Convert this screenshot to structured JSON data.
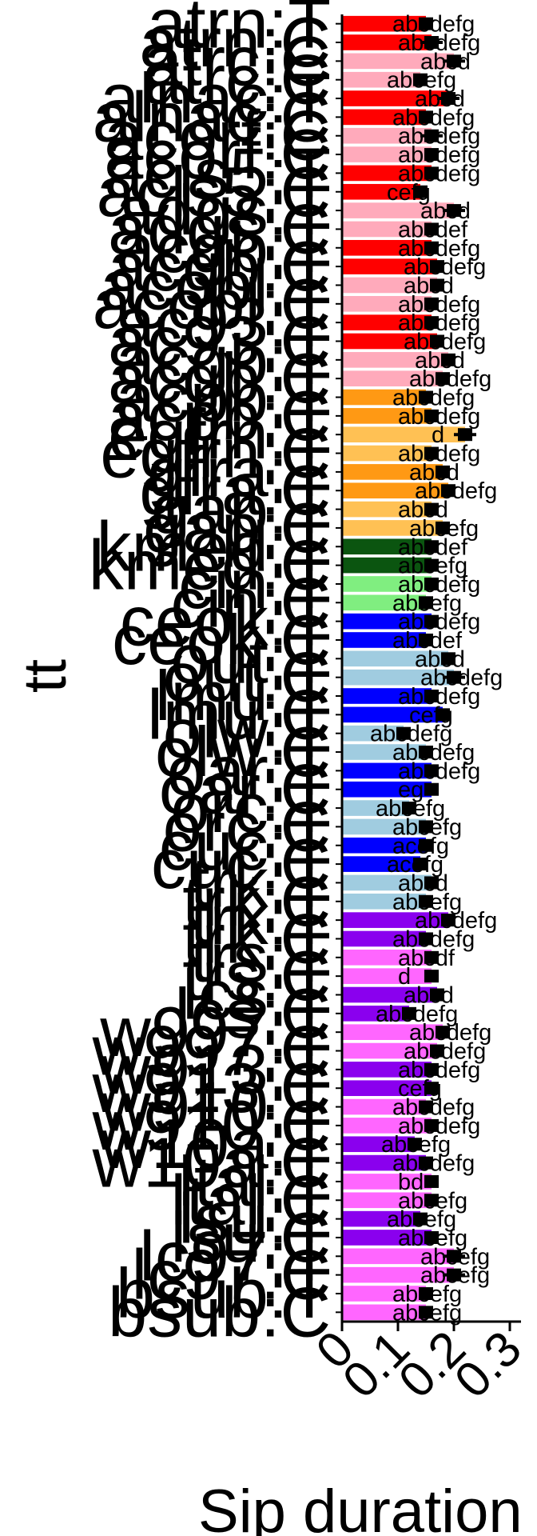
{
  "chart_data": {
    "type": "bar",
    "orientation": "horizontal",
    "title": "",
    "xlabel": "Sip duration",
    "ylabel": "tt",
    "xlim": [
      0,
      0.32
    ],
    "x_ticks": [
      0,
      0.1,
      0.2,
      0.3
    ],
    "x_tick_labels": [
      "0",
      "0.1",
      "0.2",
      "0.3"
    ],
    "grid": false,
    "legend": "none",
    "categories": [
      "atrn:T",
      "atrn:C",
      "atrc:C",
      "atrc:C",
      "alnac:T",
      "alnac:C",
      "acorf:C",
      "acorf:C",
      "acls5:T",
      "acls5:C",
      "adgs:T",
      "adgs:C",
      "acgb:T",
      "acgb:C",
      "acobl:T",
      "acobl:C",
      "ac93:T",
      "ac93:C",
      "acgb:T",
      "acgb:C",
      "acpb:T",
      "acpb:C",
      "egfrn:T",
      "egfrn:C",
      "gfra:T",
      "gfra:C",
      "gap:T",
      "gap:C",
      "kmed:T",
      "kmed:C",
      "cin:T",
      "cin:C",
      "ceok:T",
      "ceok:C",
      "out:T",
      "out:C",
      "lmu:T",
      "lmu:C",
      "olw:T",
      "olw:C",
      "oar:T",
      "oar:C",
      "orc:T",
      "orc:C",
      "cuc:T",
      "cuc:C",
      "trk:T",
      "trk:C",
      "trk:T",
      "trk:C",
      "trs:T",
      "trs:C",
      "lcs:T",
      "lcs:C",
      "w997:T",
      "w997:C",
      "w913:T",
      "w913:C",
      "w910:T",
      "w910:C",
      "w10a:T",
      "w10a:C",
      "ltal:T",
      "ltal:C",
      "lsu:T",
      "lsu:C",
      "lc97:T",
      "lc97:C",
      "bsub:T",
      "bsub:C"
    ],
    "values": [
      0.15,
      0.16,
      0.2,
      0.14,
      0.19,
      0.15,
      0.16,
      0.16,
      0.16,
      0.14,
      0.2,
      0.16,
      0.16,
      0.17,
      0.17,
      0.16,
      0.16,
      0.17,
      0.19,
      0.18,
      0.15,
      0.16,
      0.22,
      0.16,
      0.18,
      0.19,
      0.16,
      0.18,
      0.16,
      0.16,
      0.16,
      0.15,
      0.16,
      0.15,
      0.19,
      0.2,
      0.16,
      0.18,
      0.11,
      0.15,
      0.16,
      0.16,
      0.12,
      0.15,
      0.15,
      0.14,
      0.16,
      0.15,
      0.19,
      0.15,
      0.16,
      0.16,
      0.17,
      0.12,
      0.18,
      0.17,
      0.16,
      0.16,
      0.15,
      0.16,
      0.13,
      0.15,
      0.16,
      0.16,
      0.14,
      0.16,
      0.2,
      0.2,
      0.15,
      0.15
    ],
    "errors": [
      0.01,
      0.02,
      0.02,
      0.01,
      0.02,
      0.01,
      0.02,
      0.01,
      0.01,
      0.01,
      0.02,
      0.01,
      0.01,
      0.01,
      0.01,
      0.01,
      0.01,
      0.01,
      0.01,
      0.01,
      0.01,
      0.01,
      0.02,
      0.01,
      0.01,
      0.01,
      0.01,
      0.01,
      0.01,
      0.01,
      0.01,
      0.01,
      0.01,
      0.01,
      0.01,
      0.02,
      0.01,
      0.01,
      0.01,
      0.01,
      0.01,
      0.01,
      0.01,
      0.01,
      0.01,
      0.01,
      0.01,
      0.01,
      0.01,
      0.01,
      0.01,
      0.01,
      0.01,
      0.01,
      0.01,
      0.01,
      0.01,
      0.01,
      0.01,
      0.01,
      0.01,
      0.01,
      0.01,
      0.01,
      0.01,
      0.01,
      0.02,
      0.02,
      0.01,
      0.01
    ],
    "bar_labels": [
      "abcdefg",
      "abcdefg",
      "abcd",
      "abcefg",
      "abcd",
      "abcdefg",
      "abcdefg",
      "abcdefg",
      "abcdefg",
      "cefg",
      "abcd",
      "abcdef",
      "abcdefg",
      "abcdefg",
      "abcd",
      "abcdefg",
      "abcdefg",
      "abcdefg",
      "abcd",
      "abcdefg",
      "abcdefg",
      "abcdefg",
      "d",
      "abcdefg",
      "abcd",
      "abcdefg",
      "abcd",
      "abcefg",
      "abcdef",
      "abcefg",
      "abcdefg",
      "abcefg",
      "abcdefg",
      "abcdef",
      "abcd",
      "abcdefg",
      "abcdefg",
      "cefg",
      "abcdefg",
      "abcdefg",
      "abcdefg",
      "eg",
      "abcefg",
      "abcefg",
      "acefg",
      "acefg",
      "abcd",
      "abcefg",
      "abcdefg",
      "abcdefg",
      "abcdf",
      "d",
      "abcd",
      "abcdefg",
      "abcdefg",
      "abcdefg",
      "abcdefg",
      "cefg",
      "abcdefg",
      "abcdefg",
      "abcefg",
      "abcdefg",
      "bd",
      "abcefg",
      "abcefg",
      "abcefg",
      "abcefg",
      "abcefg",
      "abcefg",
      "abcefg"
    ],
    "colors": [
      "#ff0000",
      "#ff0000",
      "#ffaabb",
      "#ffaabb",
      "#ff0000",
      "#ff0000",
      "#ffaabb",
      "#ffaabb",
      "#ff0000",
      "#ff0000",
      "#ffaabb",
      "#ffaabb",
      "#ff0000",
      "#ff0000",
      "#ffaabb",
      "#ffaabb",
      "#ff0000",
      "#ff0000",
      "#ffaabb",
      "#ffaabb",
      "#ff9914",
      "#ff9914",
      "#ffc154",
      "#ffc154",
      "#ff9914",
      "#ff9914",
      "#ffc154",
      "#ffc154",
      "#0b5510",
      "#0b5510",
      "#80ee80",
      "#80ee80",
      "#0000ff",
      "#0000ff",
      "#a0cce0",
      "#a0cce0",
      "#0000ff",
      "#0000ff",
      "#a0cce0",
      "#a0cce0",
      "#0000ff",
      "#0000ff",
      "#a0cce0",
      "#a0cce0",
      "#0000ff",
      "#0000ff",
      "#a0cce0",
      "#a0cce0",
      "#8a00ee",
      "#8a00ee",
      "#ff66ff",
      "#ff66ff",
      "#8a00ee",
      "#8a00ee",
      "#ff66ff",
      "#ff66ff",
      "#8a00ee",
      "#8a00ee",
      "#ff66ff",
      "#ff66ff",
      "#8a00ee",
      "#8a00ee",
      "#ff66ff",
      "#ff66ff",
      "#8a00ee",
      "#8a00ee",
      "#ff66ff",
      "#ff66ff",
      "#ff66ff",
      "#ff66ff"
    ]
  }
}
